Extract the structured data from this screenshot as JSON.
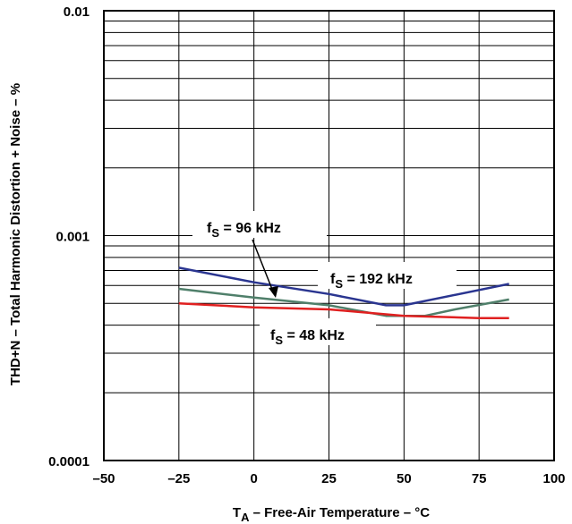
{
  "chart_data": {
    "type": "line",
    "xlabel": {
      "main": "T",
      "sub": "A",
      "rest": " – Free-Air Temperature – °C"
    },
    "ylabel": "THD+N – Total Harmonic Distortion + Noise – %",
    "xlim": [
      -50,
      100
    ],
    "ylim": [
      0.0001,
      0.01
    ],
    "yscale": "log",
    "grid": true,
    "x_ticks": [
      -50,
      -25,
      0,
      25,
      50,
      75,
      100
    ],
    "x_tick_labels": [
      "–50",
      "–25",
      "0",
      "25",
      "50",
      "75",
      "100"
    ],
    "y_ticks": [
      0.0001,
      0.001,
      0.01
    ],
    "y_tick_labels": [
      "0.0001",
      "0.001",
      "0.01"
    ],
    "series": [
      {
        "name": {
          "main": "f",
          "sub": "S",
          "rest": " = 96 kHz"
        },
        "color": "#2a3590",
        "x": [
          -25,
          0,
          25,
          44,
          50,
          85
        ],
        "y": [
          0.00072,
          0.00062,
          0.00055,
          0.00049,
          0.00049,
          0.00061
        ]
      },
      {
        "name": {
          "main": "f",
          "sub": "S",
          "rest": " = 192 kHz"
        },
        "color": "#4f7f6a",
        "x": [
          -25,
          0,
          25,
          44,
          57,
          67,
          85
        ],
        "y": [
          0.00058,
          0.00053,
          0.00049,
          0.00044,
          0.00044,
          0.00047,
          0.00052
        ]
      },
      {
        "name": {
          "main": "f",
          "sub": "S",
          "rest": " = 48 kHz"
        },
        "color": "#e02020",
        "x": [
          -25,
          0,
          25,
          50,
          75,
          85
        ],
        "y": [
          0.0005,
          0.00048,
          0.00047,
          0.00044,
          0.00043,
          0.00043
        ]
      }
    ]
  }
}
